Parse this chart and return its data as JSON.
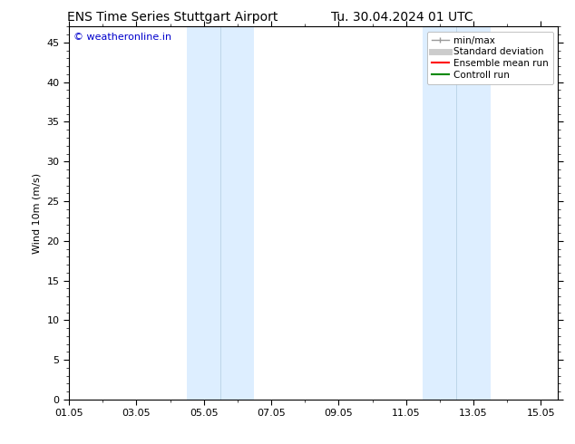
{
  "title_left": "ENS Time Series Stuttgart Airport",
  "title_right": "Tu. 30.04.2024 01 UTC",
  "ylabel": "Wind 10m (m/s)",
  "watermark": "© weatheronline.in",
  "watermark_color": "#0000cc",
  "ylim": [
    0,
    47
  ],
  "yticks": [
    0,
    5,
    10,
    15,
    20,
    25,
    30,
    35,
    40,
    45
  ],
  "xlim_days": [
    0,
    14.5
  ],
  "xtick_labels": [
    "01.05",
    "03.05",
    "05.05",
    "07.05",
    "09.05",
    "11.05",
    "13.05",
    "15.05"
  ],
  "xtick_positions_days": [
    0,
    2,
    4,
    6,
    8,
    10,
    12,
    14
  ],
  "shaded_regions": [
    {
      "start_day": 3.5,
      "end_day": 4.5
    },
    {
      "start_day": 4.5,
      "end_day": 5.5
    },
    {
      "start_day": 10.5,
      "end_day": 11.5
    },
    {
      "start_day": 11.5,
      "end_day": 12.5
    }
  ],
  "shaded_color": "#ddeeff",
  "shaded_separator": "#c8dcf0",
  "bg_color": "#ffffff",
  "plot_bg_color": "#ffffff",
  "legend_items": [
    {
      "label": "min/max",
      "color": "#999999",
      "lw": 1.0
    },
    {
      "label": "Standard deviation",
      "color": "#cccccc",
      "lw": 5
    },
    {
      "label": "Ensemble mean run",
      "color": "#ff0000",
      "lw": 1.5
    },
    {
      "label": "Controll run",
      "color": "#008800",
      "lw": 1.5
    }
  ],
  "title_fontsize": 10,
  "axis_fontsize": 8,
  "tick_fontsize": 8,
  "legend_fontsize": 7.5,
  "watermark_fontsize": 8,
  "spine_color": "#000000"
}
